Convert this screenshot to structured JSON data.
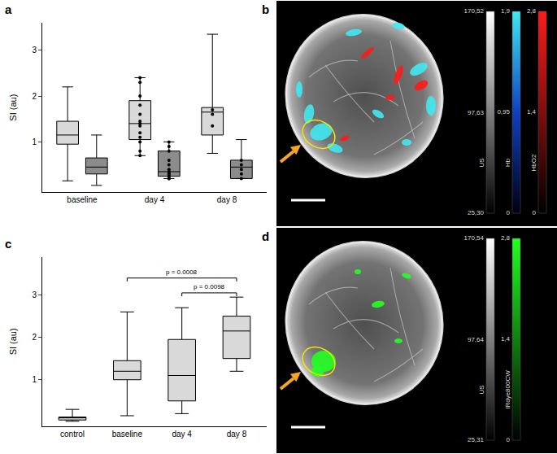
{
  "chart_data": [
    {
      "panel": "a",
      "type": "box",
      "y_label": "SI (au)",
      "categories": [
        "baseline",
        "day 4",
        "day 8"
      ],
      "ylim": [
        -0.1,
        3.6
      ],
      "yticks": [
        1,
        2,
        3
      ],
      "series": [
        {
          "color": "#d9d9d9",
          "boxes": [
            {
              "min": 0.15,
              "q1": 0.95,
              "median": 1.15,
              "q3": 1.45,
              "max": 2.2
            },
            {
              "min": 0.7,
              "q1": 1.05,
              "median": 1.4,
              "q3": 1.9,
              "max": 2.4,
              "points": [
                2.4,
                2.3,
                2.0,
                1.8,
                1.6,
                1.45,
                1.4,
                1.35,
                1.2,
                1.1,
                1.0,
                0.8,
                0.7
              ]
            },
            {
              "min": 0.75,
              "q1": 1.15,
              "median": 1.65,
              "q3": 1.75,
              "max": 3.35,
              "points": [
                1.7,
                1.6,
                1.35
              ]
            }
          ]
        },
        {
          "color": "#8c8c8c",
          "boxes": [
            {
              "min": 0.05,
              "q1": 0.3,
              "median": 0.45,
              "q3": 0.65,
              "max": 1.15
            },
            {
              "min": 0.2,
              "q1": 0.25,
              "median": 0.35,
              "q3": 0.8,
              "max": 1.0,
              "points": [
                1.0,
                0.9,
                0.8,
                0.6,
                0.5,
                0.4,
                0.35,
                0.3,
                0.3,
                0.25,
                0.25,
                0.2,
                0.2
              ]
            },
            {
              "min": 0.2,
              "q1": 0.2,
              "median": 0.45,
              "q3": 0.6,
              "max": 1.05,
              "points": [
                0.6,
                0.5,
                0.4,
                0.3,
                0.2
              ]
            }
          ]
        }
      ]
    },
    {
      "panel": "c",
      "type": "box",
      "y_label": "SI (au)",
      "categories": [
        "control",
        "baseline",
        "day 4",
        "day 8"
      ],
      "ylim": [
        -0.1,
        3.9
      ],
      "yticks": [
        1,
        2,
        3
      ],
      "series": [
        {
          "color": "#d9d9d9",
          "boxes": [
            {
              "min": 0.02,
              "q1": 0.05,
              "median": 0.1,
              "q3": 0.12,
              "max": 0.3
            },
            {
              "min": 0.15,
              "q1": 1.0,
              "median": 1.2,
              "q3": 1.45,
              "max": 2.6
            },
            {
              "min": 0.2,
              "q1": 0.5,
              "median": 1.1,
              "q3": 1.95,
              "max": 2.7
            },
            {
              "min": 1.2,
              "q1": 1.5,
              "median": 2.15,
              "q3": 2.5,
              "max": 2.95
            }
          ]
        }
      ],
      "annotations": [
        {
          "text": "p = 0.0008",
          "x": [
            "baseline",
            "day 8"
          ],
          "y": 3.4
        },
        {
          "text": "p = 0.0098",
          "x": [
            "day 4",
            "day 8"
          ],
          "y": 3.05
        }
      ]
    },
    {
      "panel": "b",
      "type": "image",
      "colorbars": [
        {
          "title": "US",
          "colors": [
            "#000000",
            "#ffffff"
          ],
          "range": [
            25.3,
            170.52
          ],
          "ticks": [
            {
              "value": 25.3,
              "label": "25,30"
            },
            {
              "value": 97.63,
              "label": "97,63"
            },
            {
              "value": 170.52,
              "label": "170,52"
            }
          ]
        },
        {
          "title": "Hb",
          "colors": [
            "#000010",
            "#1040c0",
            "#40e8f0"
          ],
          "range": [
            0,
            1.9
          ],
          "ticks": [
            0,
            {
              "value": 0.95,
              "label": "0,95"
            },
            {
              "value": 1.9,
              "label": "1,9"
            }
          ]
        },
        {
          "title": "HbO2",
          "colors": [
            "#000000",
            "#ff1a1a"
          ],
          "range": [
            0,
            2.8
          ],
          "ticks": [
            0,
            {
              "value": 1.4,
              "label": "1,4"
            },
            {
              "value": 2.8,
              "label": "2,8"
            }
          ]
        }
      ]
    },
    {
      "panel": "d",
      "type": "image",
      "colorbars": [
        {
          "title": "US",
          "colors": [
            "#000000",
            "#ffffff"
          ],
          "range": [
            25.31,
            170.54
          ],
          "ticks": [
            {
              "value": 25.31,
              "label": "25,31"
            },
            {
              "value": 97.64,
              "label": "97,64"
            },
            {
              "value": 170.54,
              "label": "170,54"
            }
          ]
        },
        {
          "title": "IRdye800CW",
          "colors": [
            "#000000",
            "#22ff22"
          ],
          "range": [
            0,
            2.8
          ],
          "ticks": [
            0,
            {
              "value": 1.4,
              "label": "1,4"
            },
            {
              "value": 2.8,
              "label": "2,8"
            }
          ]
        }
      ]
    }
  ]
}
